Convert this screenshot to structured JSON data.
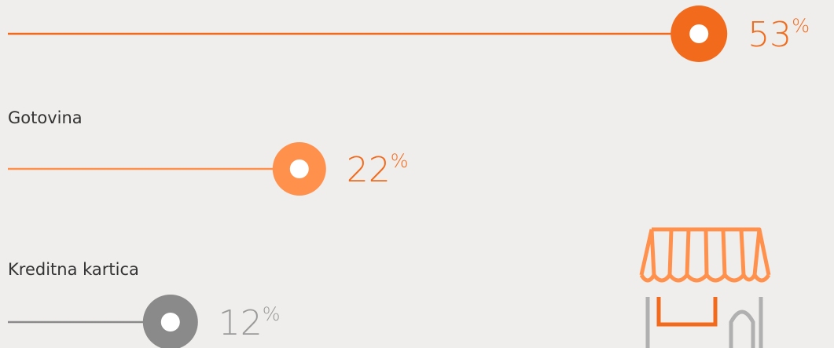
{
  "chart_data": {
    "type": "lollipop",
    "categories": [
      null,
      "Gotovina",
      "Kreditna kartica"
    ],
    "values": [
      53,
      22,
      12
    ],
    "value_labels": [
      "53%",
      "22%",
      "12%"
    ],
    "colors": [
      "#f26a1b",
      "#ff914d",
      "#8a8a8a"
    ],
    "label_colors": [
      "#f26a1b",
      "#f26a1b",
      "#9a9a9a"
    ]
  }
}
